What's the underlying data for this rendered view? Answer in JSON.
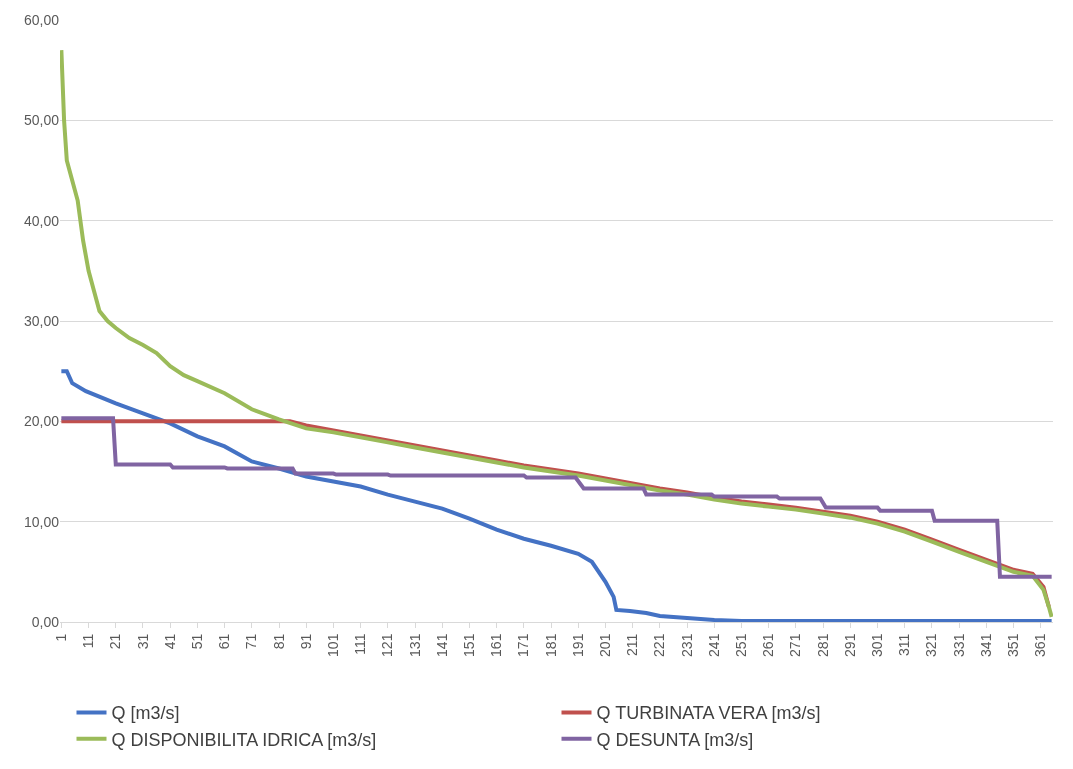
{
  "chart_data": {
    "type": "line",
    "xlim": [
      0.5,
      365.5
    ],
    "xticks": [
      1,
      11,
      21,
      31,
      41,
      51,
      61,
      71,
      81,
      91,
      101,
      111,
      121,
      131,
      141,
      151,
      161,
      171,
      181,
      191,
      201,
      211,
      221,
      231,
      241,
      251,
      261,
      271,
      281,
      291,
      301,
      311,
      321,
      331,
      341,
      351,
      361
    ],
    "ylim": [
      0,
      60
    ],
    "yticks": [
      {
        "value": 0,
        "label": "0,00"
      },
      {
        "value": 10,
        "label": "10,00"
      },
      {
        "value": 20,
        "label": "20,00"
      },
      {
        "value": 30,
        "label": "30,00"
      },
      {
        "value": 40,
        "label": "40,00"
      },
      {
        "value": 50,
        "label": "50,00"
      },
      {
        "value": 60,
        "label": "60,00"
      }
    ],
    "grid": "y",
    "legend": "bottom",
    "marker": "none",
    "line_style": "solid",
    "series": [
      {
        "name": "Q [m3/s]",
        "color": "#4472c4",
        "x": [
          1,
          3,
          5,
          10,
          21,
          31,
          41,
          51,
          61,
          71,
          81,
          91,
          101,
          111,
          121,
          131,
          141,
          151,
          161,
          171,
          181,
          191,
          196,
          201,
          204,
          205,
          210,
          216,
          221,
          231,
          241,
          251,
          261,
          365
        ],
        "values": [
          25,
          25,
          23.8,
          23,
          21.8,
          20.8,
          19.8,
          18.5,
          17.5,
          16,
          15.3,
          14.5,
          14,
          13.5,
          12.7,
          12,
          11.3,
          10.3,
          9.2,
          8.3,
          7.6,
          6.8,
          6,
          4,
          2.5,
          1.2,
          1.1,
          0.9,
          0.6,
          0.4,
          0.2,
          0.1,
          0.1,
          0.1
        ]
      },
      {
        "name": "Q TURBINATA VERA [m3/s]",
        "color": "#c0504d",
        "x": [
          1,
          85,
          91,
          101,
          111,
          121,
          131,
          141,
          151,
          161,
          171,
          181,
          191,
          201,
          211,
          221,
          231,
          241,
          251,
          261,
          271,
          281,
          291,
          301,
          311,
          321,
          331,
          341,
          351,
          358,
          362,
          364
        ],
        "values": [
          20,
          20,
          19.6,
          19.1,
          18.6,
          18.1,
          17.6,
          17.1,
          16.6,
          16.1,
          15.6,
          15.2,
          14.8,
          14.3,
          13.8,
          13.3,
          12.9,
          12.4,
          12,
          11.7,
          11.4,
          11,
          10.6,
          10,
          9.2,
          8.2,
          7.2,
          6.2,
          5.2,
          4.8,
          3.5,
          1.5
        ]
      },
      {
        "name": "Q DISPONIBILITA IDRICA [m3/s]",
        "color": "#9bbb59",
        "x": [
          1,
          2,
          3,
          5,
          7,
          9,
          11,
          13,
          15,
          18,
          21,
          26,
          31,
          36,
          41,
          46,
          51,
          61,
          71,
          81,
          91,
          101,
          111,
          121,
          131,
          141,
          151,
          161,
          171,
          181,
          191,
          201,
          211,
          221,
          231,
          241,
          251,
          261,
          271,
          281,
          291,
          301,
          311,
          321,
          331,
          341,
          351,
          358,
          362,
          364,
          365
        ],
        "values": [
          57,
          50,
          46,
          44,
          42,
          38,
          35,
          33,
          31,
          30,
          29.3,
          28.3,
          27.6,
          26.8,
          25.5,
          24.6,
          24,
          22.8,
          21.2,
          20.2,
          19.3,
          18.9,
          18.4,
          17.9,
          17.4,
          16.9,
          16.4,
          15.9,
          15.4,
          15,
          14.6,
          14.1,
          13.6,
          13.1,
          12.7,
          12.2,
          11.8,
          11.5,
          11.2,
          10.8,
          10.4,
          9.8,
          9,
          8,
          7,
          6,
          5,
          4.6,
          3.2,
          1.5,
          0.5
        ]
      },
      {
        "name": "Q DESUNTA [m3/s]",
        "color": "#8064a2",
        "x": [
          1,
          20,
          21,
          41,
          42,
          61,
          62,
          86,
          87,
          101,
          102,
          121,
          122,
          171,
          172,
          190,
          193,
          215,
          216,
          240,
          241,
          264,
          265,
          280,
          282,
          301,
          302,
          321,
          322,
          345,
          346,
          365
        ],
        "values": [
          20.3,
          20.3,
          15.7,
          15.7,
          15.4,
          15.4,
          15.3,
          15.3,
          14.8,
          14.8,
          14.7,
          14.7,
          14.6,
          14.6,
          14.4,
          14.4,
          13.3,
          13.3,
          12.7,
          12.7,
          12.5,
          12.5,
          12.3,
          12.3,
          11.4,
          11.4,
          11.1,
          11.1,
          10.1,
          10.1,
          4.5,
          4.5
        ]
      }
    ]
  }
}
